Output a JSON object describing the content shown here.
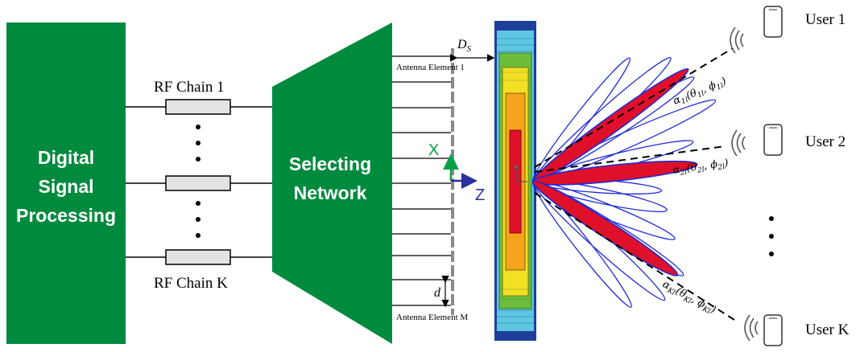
{
  "blocks": {
    "dsp": "Digital\nSignal\nProcessing",
    "selecting": "Selecting\nNetwork"
  },
  "rf_chains": {
    "first": "RF Chain 1",
    "last": "RF Chain K"
  },
  "antenna": {
    "first": "Antenna Element 1",
    "last": "Antenna Element M",
    "spacing": "d",
    "distance": "D",
    "distance_sub": "S"
  },
  "axes": {
    "x": "X",
    "z": "Z"
  },
  "users": [
    {
      "label": "User 1",
      "gain": "α",
      "gain_sub": "1l",
      "theta_sub": "1l",
      "phi_sub": "1l"
    },
    {
      "label": "User 2",
      "gain": "α",
      "gain_sub": "2l",
      "theta_sub": "2l",
      "phi_sub": "2l"
    },
    {
      "label": "User K",
      "gain": "α",
      "gain_sub": "Kl",
      "theta_sub": "Kl",
      "phi_sub": "Kl"
    }
  ],
  "colors": {
    "block_green": "#008a3e",
    "rf_fill": "#e3e3e3",
    "beam_blue": "#1f2bd6",
    "beam_red": "#e0102a",
    "axis_green": "#0aa04a",
    "axis_blue": "#2b2f9a"
  }
}
